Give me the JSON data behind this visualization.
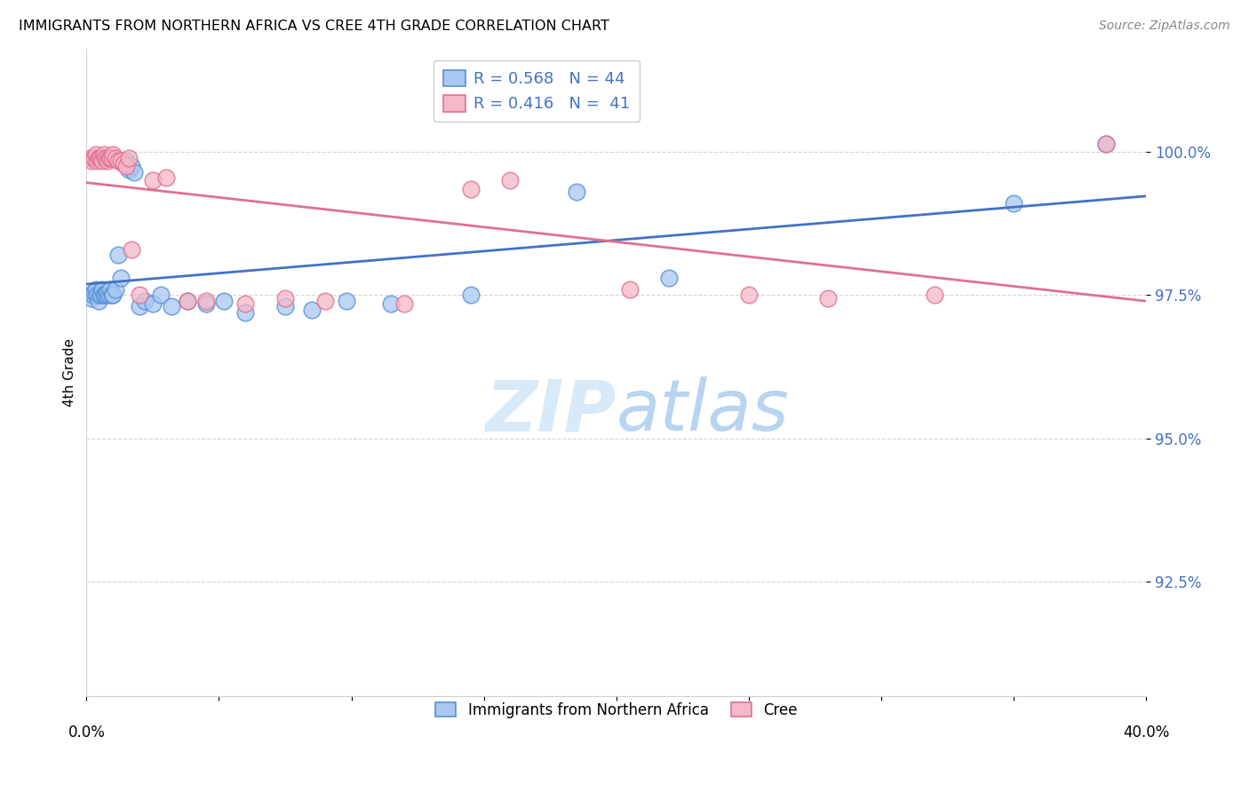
{
  "title": "IMMIGRANTS FROM NORTHERN AFRICA VS CREE 4TH GRADE CORRELATION CHART",
  "source": "Source: ZipAtlas.com",
  "ylabel": "4th Grade",
  "ytick_values": [
    92.5,
    95.0,
    97.5,
    100.0
  ],
  "xlim": [
    0.0,
    40.0
  ],
  "ylim": [
    90.5,
    101.8
  ],
  "legend_blue_label": "R = 0.568   N = 44",
  "legend_pink_label": "R = 0.416   N =  41",
  "legend_bottom_blue": "Immigrants from Northern Africa",
  "legend_bottom_pink": "Cree",
  "blue_color": "#A8C8F0",
  "pink_color": "#F5B8C8",
  "blue_edge_color": "#5590D8",
  "pink_edge_color": "#E07090",
  "blue_line_color": "#4472C4",
  "pink_line_color": "#E07090",
  "tick_color": "#4472C4",
  "watermark_color": "#D8EAF8",
  "blue_scatter_x": [
    0.15,
    0.2,
    0.25,
    0.3,
    0.35,
    0.4,
    0.45,
    0.5,
    0.55,
    0.6,
    0.65,
    0.7,
    0.75,
    0.8,
    0.85,
    0.9,
    0.95,
    1.0,
    1.1,
    1.2,
    1.3,
    1.4,
    1.5,
    1.6,
    1.7,
    1.8,
    2.0,
    2.2,
    2.5,
    2.8,
    3.2,
    3.8,
    4.5,
    5.2,
    6.0,
    7.5,
    8.5,
    9.8,
    11.5,
    14.5,
    18.5,
    22.0,
    35.0,
    38.5
  ],
  "blue_scatter_y": [
    97.5,
    97.45,
    97.5,
    97.55,
    97.6,
    97.5,
    97.4,
    97.5,
    97.5,
    97.6,
    97.5,
    97.5,
    97.5,
    97.55,
    97.5,
    97.6,
    97.5,
    97.5,
    97.6,
    98.2,
    97.8,
    99.8,
    99.85,
    99.7,
    99.75,
    99.65,
    97.3,
    97.4,
    97.35,
    97.5,
    97.3,
    97.4,
    97.35,
    97.4,
    97.2,
    97.3,
    97.25,
    97.4,
    97.35,
    97.5,
    99.3,
    97.8,
    99.1,
    100.15
  ],
  "pink_scatter_x": [
    0.15,
    0.2,
    0.25,
    0.3,
    0.35,
    0.4,
    0.45,
    0.5,
    0.55,
    0.6,
    0.65,
    0.7,
    0.75,
    0.8,
    0.85,
    0.9,
    0.95,
    1.0,
    1.1,
    1.2,
    1.3,
    1.4,
    1.5,
    1.6,
    1.7,
    2.0,
    2.5,
    3.0,
    3.8,
    4.5,
    6.0,
    7.5,
    9.0,
    12.0,
    14.5,
    16.0,
    20.5,
    25.0,
    28.0,
    32.0,
    38.5
  ],
  "pink_scatter_y": [
    99.9,
    99.85,
    99.9,
    99.9,
    99.95,
    99.85,
    99.9,
    99.9,
    99.9,
    99.85,
    99.95,
    99.9,
    99.9,
    99.85,
    99.9,
    99.9,
    99.9,
    99.95,
    99.9,
    99.85,
    99.85,
    99.8,
    99.75,
    99.9,
    98.3,
    97.5,
    99.5,
    99.55,
    97.4,
    97.4,
    97.35,
    97.45,
    97.4,
    97.35,
    99.35,
    99.5,
    97.6,
    97.5,
    97.45,
    97.5,
    100.15
  ]
}
